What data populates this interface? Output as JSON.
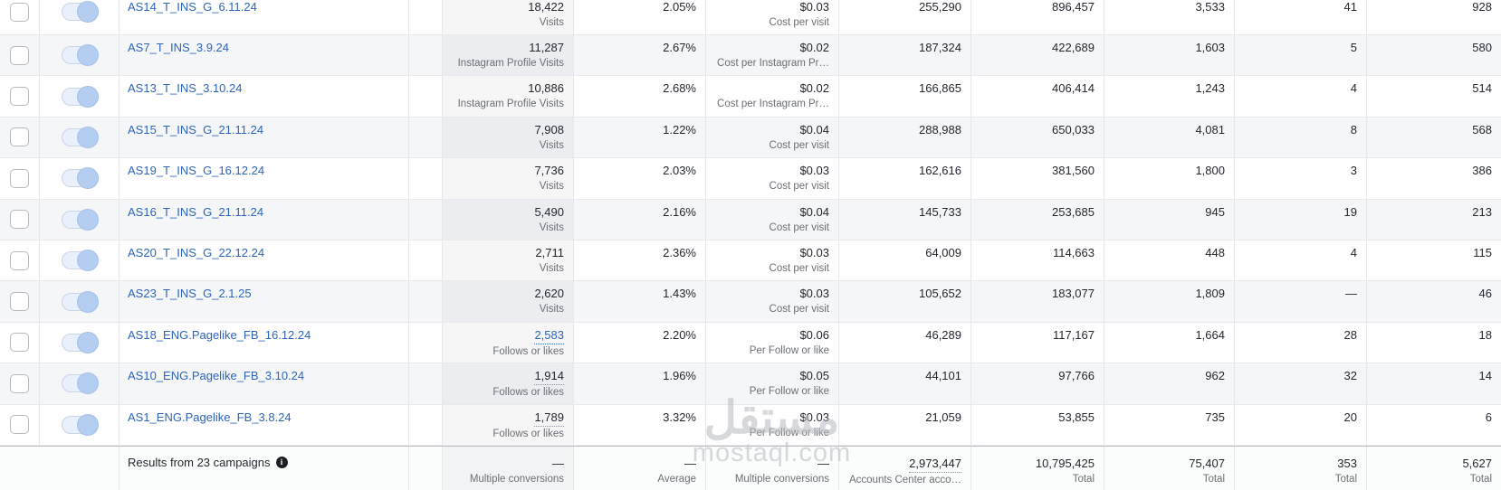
{
  "watermark": {
    "logo_text": "مستقل",
    "domain": "mostaql.com"
  },
  "colors": {
    "link_blue": "#2d64bd",
    "value_text": "#23272e",
    "label_text": "#6b6f75",
    "stripe_row": "#f5f6f8",
    "toggle_track": "#e9effb",
    "toggle_knob": "#b4cef1"
  },
  "table": {
    "rows": [
      {
        "name": "AS14_T_INS_G_6.11.24",
        "toggle_on": true,
        "result": "18,422",
        "result_label": "Visits",
        "result_style": "plain",
        "rate": "2.05%",
        "cost": "$0.03",
        "cost_label": "Cost per visit",
        "metrics": [
          "255,290",
          "896,457",
          "3,533",
          "41",
          "928"
        ]
      },
      {
        "name": "AS7_T_INS_3.9.24",
        "toggle_on": true,
        "result": "11,287",
        "result_label": "Instagram Profile Visits",
        "result_style": "plain",
        "rate": "2.67%",
        "cost": "$0.02",
        "cost_label": "Cost per Instagram Pr…",
        "metrics": [
          "187,324",
          "422,689",
          "1,603",
          "5",
          "580"
        ]
      },
      {
        "name": "AS13_T_INS_3.10.24",
        "toggle_on": true,
        "result": "10,886",
        "result_label": "Instagram Profile Visits",
        "result_style": "plain",
        "rate": "2.68%",
        "cost": "$0.02",
        "cost_label": "Cost per Instagram Pr…",
        "metrics": [
          "166,865",
          "406,414",
          "1,243",
          "4",
          "514"
        ]
      },
      {
        "name": "AS15_T_INS_G_21.11.24",
        "toggle_on": true,
        "result": "7,908",
        "result_label": "Visits",
        "result_style": "plain",
        "rate": "1.22%",
        "cost": "$0.04",
        "cost_label": "Cost per visit",
        "metrics": [
          "288,988",
          "650,033",
          "4,081",
          "8",
          "568"
        ]
      },
      {
        "name": "AS19_T_INS_G_16.12.24",
        "toggle_on": true,
        "result": "7,736",
        "result_label": "Visits",
        "result_style": "plain",
        "rate": "2.03%",
        "cost": "$0.03",
        "cost_label": "Cost per visit",
        "metrics": [
          "162,616",
          "381,560",
          "1,800",
          "3",
          "386"
        ]
      },
      {
        "name": "AS16_T_INS_G_21.11.24",
        "toggle_on": true,
        "result": "5,490",
        "result_label": "Visits",
        "result_style": "plain",
        "rate": "2.16%",
        "cost": "$0.04",
        "cost_label": "Cost per visit",
        "metrics": [
          "145,733",
          "253,685",
          "945",
          "19",
          "213"
        ]
      },
      {
        "name": "AS20_T_INS_G_22.12.24",
        "toggle_on": true,
        "result": "2,711",
        "result_label": "Visits",
        "result_style": "plain",
        "rate": "2.36%",
        "cost": "$0.03",
        "cost_label": "Cost per visit",
        "metrics": [
          "64,009",
          "114,663",
          "448",
          "4",
          "115"
        ]
      },
      {
        "name": "AS23_T_INS_G_2.1.25",
        "toggle_on": true,
        "result": "2,620",
        "result_label": "Visits",
        "result_style": "plain",
        "rate": "1.43%",
        "cost": "$0.03",
        "cost_label": "Cost per visit",
        "metrics": [
          "105,652",
          "183,077",
          "1,809",
          "—",
          "46"
        ]
      },
      {
        "name": "AS18_ENG.Pagelike_FB_16.12.24",
        "toggle_on": true,
        "result": "2,583",
        "result_label": "Follows or likes",
        "result_style": "link",
        "rate": "2.20%",
        "cost": "$0.06",
        "cost_label": "Per Follow or like",
        "metrics": [
          "46,289",
          "117,167",
          "1,664",
          "28",
          "18"
        ]
      },
      {
        "name": "AS10_ENG.Pagelike_FB_3.10.24",
        "toggle_on": true,
        "result": "1,914",
        "result_label": "Follows or likes",
        "result_style": "dotted",
        "rate": "1.96%",
        "cost": "$0.05",
        "cost_label": "Per Follow or like",
        "metrics": [
          "44,101",
          "97,766",
          "962",
          "32",
          "14"
        ]
      },
      {
        "name": "AS1_ENG.Pagelike_FB_3.8.24",
        "toggle_on": true,
        "result": "1,789",
        "result_label": "Follows or likes",
        "result_style": "dotted",
        "rate": "3.32%",
        "cost": "$0.03",
        "cost_label": "Per Follow or like",
        "metrics": [
          "21,059",
          "53,855",
          "735",
          "20",
          "6"
        ]
      }
    ]
  },
  "footer": {
    "summary_label": "Results from 23 campaigns",
    "cells": [
      {
        "value": "—",
        "label": "Multiple conversions",
        "style": "plain"
      },
      {
        "value": "—",
        "label": "Average",
        "style": "plain"
      },
      {
        "value": "—",
        "label": "Multiple conversions",
        "style": "plain"
      },
      {
        "value": "2,973,447",
        "label": "Accounts Center acco…",
        "style": "dotted"
      },
      {
        "value": "10,795,425",
        "label": "Total",
        "style": "plain"
      },
      {
        "value": "75,407",
        "label": "Total",
        "style": "plain"
      },
      {
        "value": "353",
        "label": "Total",
        "style": "plain"
      },
      {
        "value": "5,627",
        "label": "Total",
        "style": "plain"
      }
    ]
  }
}
